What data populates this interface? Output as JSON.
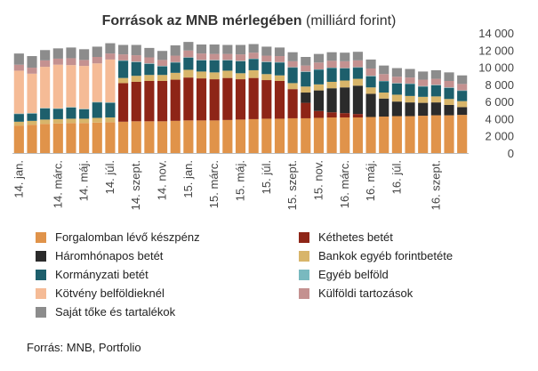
{
  "chart_data": {
    "type": "bar",
    "stacked": true,
    "title_bold": "Források az MNB mérlegében",
    "title_rest": " (milliárd forint)",
    "ylim": [
      0,
      14000
    ],
    "yticks": [
      "0",
      "2 000",
      "4 000",
      "6 000",
      "8 000",
      "10 000",
      "12 000",
      "14 000"
    ],
    "grid": false,
    "legend_position": "bottom",
    "xtick_labels": [
      {
        "index": 0,
        "label": "14. jan."
      },
      {
        "index": 3,
        "label": "14. márc."
      },
      {
        "index": 5,
        "label": "14. máj."
      },
      {
        "index": 7,
        "label": "14. júl."
      },
      {
        "index": 9,
        "label": "14. szept."
      },
      {
        "index": 11,
        "label": "14. nov."
      },
      {
        "index": 13,
        "label": "15. jan."
      },
      {
        "index": 15,
        "label": "15. márc."
      },
      {
        "index": 17,
        "label": "15. máj."
      },
      {
        "index": 19,
        "label": "15. júl."
      },
      {
        "index": 21,
        "label": "15. szept."
      },
      {
        "index": 23,
        "label": "15. nov."
      },
      {
        "index": 25,
        "label": "16. márc."
      },
      {
        "index": 27,
        "label": "16. máj."
      },
      {
        "index": 29,
        "label": "16. júl."
      },
      {
        "index": 32,
        "label": "16. szept."
      }
    ],
    "series": [
      {
        "name": "Forgalomban lévő készpénz",
        "color": "#e0934a",
        "values": [
          3200,
          3300,
          3400,
          3450,
          3500,
          3500,
          3550,
          3600,
          3650,
          3700,
          3700,
          3700,
          3750,
          3800,
          3800,
          3800,
          3850,
          3900,
          3950,
          4000,
          4000,
          4050,
          4050,
          4100,
          4150,
          4150,
          4150,
          4200,
          4250,
          4300,
          4300,
          4350,
          4400,
          4400,
          4450
        ]
      },
      {
        "name": "Kéthetes betét",
        "color": "#8e2517",
        "values": [
          0,
          0,
          0,
          0,
          0,
          0,
          0,
          0,
          4500,
          4600,
          4700,
          4700,
          4800,
          5000,
          4900,
          4800,
          4900,
          4700,
          4800,
          4500,
          4400,
          3400,
          1800,
          800,
          600,
          500,
          400,
          0,
          0,
          0,
          0,
          0,
          0,
          0,
          0
        ]
      },
      {
        "name": "Háromhónapos betét",
        "color": "#2b2b2b",
        "values": [
          0,
          0,
          0,
          0,
          0,
          0,
          0,
          0,
          0,
          0,
          0,
          0,
          0,
          0,
          0,
          0,
          0,
          0,
          0,
          0,
          0,
          0,
          1200,
          2400,
          2800,
          3000,
          3300,
          2700,
          2100,
          1700,
          1600,
          1500,
          1500,
          1200,
          900
        ]
      },
      {
        "name": "Bankok egyéb forintbetéte",
        "color": "#d8b56a",
        "values": [
          450,
          450,
          500,
          500,
          500,
          500,
          550,
          550,
          600,
          700,
          700,
          700,
          800,
          900,
          800,
          800,
          850,
          700,
          900,
          700,
          650,
          700,
          700,
          700,
          750,
          800,
          800,
          750,
          700,
          800,
          750,
          700,
          700,
          700,
          700
        ]
      },
      {
        "name": "Kormányzati betét",
        "color": "#1d5f6c",
        "values": [
          900,
          850,
          1300,
          1200,
          1300,
          1100,
          1800,
          1700,
          2000,
          1600,
          1300,
          1000,
          1200,
          1400,
          1300,
          1400,
          1200,
          1400,
          1300,
          1400,
          1500,
          1800,
          1700,
          1700,
          1600,
          1400,
          1300,
          1300,
          1300,
          1300,
          1400,
          1200,
          1300,
          1300,
          1200
        ]
      },
      {
        "name": "Egyéb belföld",
        "color": "#79b9bf",
        "values": [
          50,
          50,
          50,
          50,
          50,
          50,
          50,
          50,
          50,
          50,
          50,
          50,
          50,
          50,
          50,
          50,
          50,
          50,
          50,
          50,
          50,
          50,
          50,
          50,
          50,
          50,
          50,
          50,
          50,
          50,
          50,
          50,
          50,
          50,
          50
        ]
      },
      {
        "name": "Kötvény belföldieknél",
        "color": "#f5bb96",
        "values": [
          5000,
          4600,
          4800,
          5100,
          4900,
          5000,
          4500,
          5000,
          0,
          0,
          0,
          0,
          0,
          0,
          0,
          0,
          0,
          0,
          0,
          0,
          0,
          0,
          0,
          0,
          0,
          0,
          0,
          0,
          0,
          0,
          0,
          0,
          0,
          0,
          0
        ]
      },
      {
        "name": "Külföldi tartozások",
        "color": "#c49190",
        "values": [
          700,
          700,
          750,
          700,
          800,
          700,
          750,
          700,
          700,
          750,
          700,
          700,
          750,
          800,
          750,
          700,
          700,
          750,
          700,
          700,
          700,
          700,
          700,
          800,
          800,
          800,
          800,
          850,
          800,
          750,
          700,
          750,
          700,
          750,
          750
        ]
      },
      {
        "name": "Saját tőke és tartalékok",
        "color": "#8c8c8c",
        "values": [
          1300,
          1350,
          1200,
          1200,
          1250,
          1250,
          1200,
          1200,
          1100,
          1200,
          1100,
          1050,
          1200,
          1000,
          1050,
          1100,
          1050,
          1100,
          1000,
          1050,
          1000,
          1050,
          1000,
          1000,
          1000,
          1000,
          1000,
          1050,
          1000,
          1000,
          1000,
          950,
          1000,
          1000,
          1000
        ]
      }
    ]
  },
  "source_text": "Forrás: MNB, Portfolio"
}
